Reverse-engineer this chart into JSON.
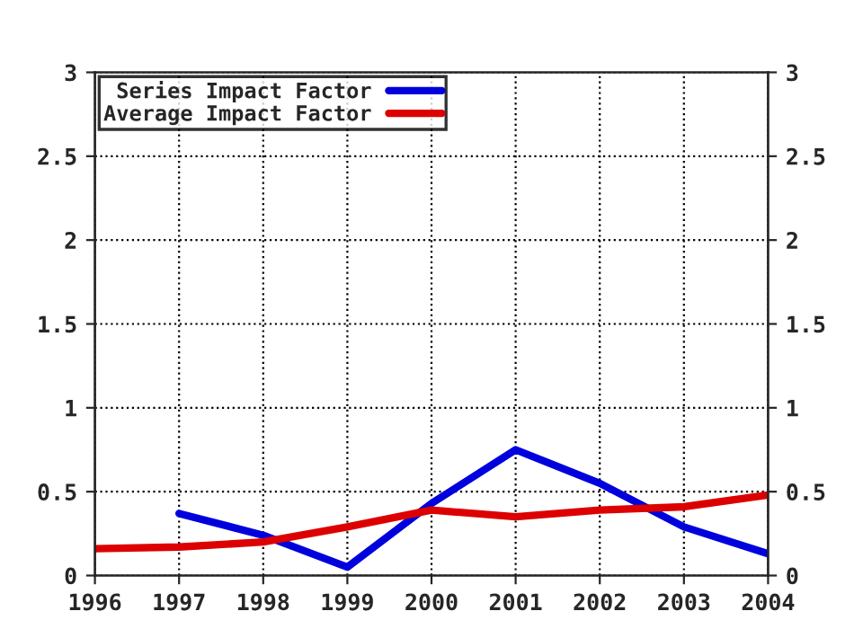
{
  "chart_data": {
    "type": "line",
    "x": [
      1996,
      1997,
      1998,
      1999,
      2000,
      2001,
      2002,
      2003,
      2004
    ],
    "series": [
      {
        "name": "Series Impact Factor",
        "color": "#0000dd",
        "values": [
          null,
          0.37,
          0.24,
          0.05,
          0.43,
          0.75,
          0.55,
          0.29,
          0.13
        ]
      },
      {
        "name": "Average Impact Factor",
        "color": "#dd0000",
        "values": [
          0.16,
          0.17,
          0.2,
          0.29,
          0.39,
          0.35,
          0.39,
          0.41,
          0.48
        ]
      }
    ],
    "xlim": [
      1996,
      2004
    ],
    "xticks": [
      1996,
      1997,
      1998,
      1999,
      2000,
      2001,
      2002,
      2003,
      2004
    ],
    "ylim": [
      0,
      3
    ],
    "yticks": [
      0,
      0.5,
      1,
      1.5,
      2,
      2.5,
      3
    ],
    "y2lim": [
      0,
      3
    ],
    "y2ticks": [
      0,
      0.5,
      1,
      1.5,
      2,
      2.5,
      3
    ],
    "grid": true,
    "legend": "top left",
    "line_style": "solid",
    "marker": "none"
  }
}
